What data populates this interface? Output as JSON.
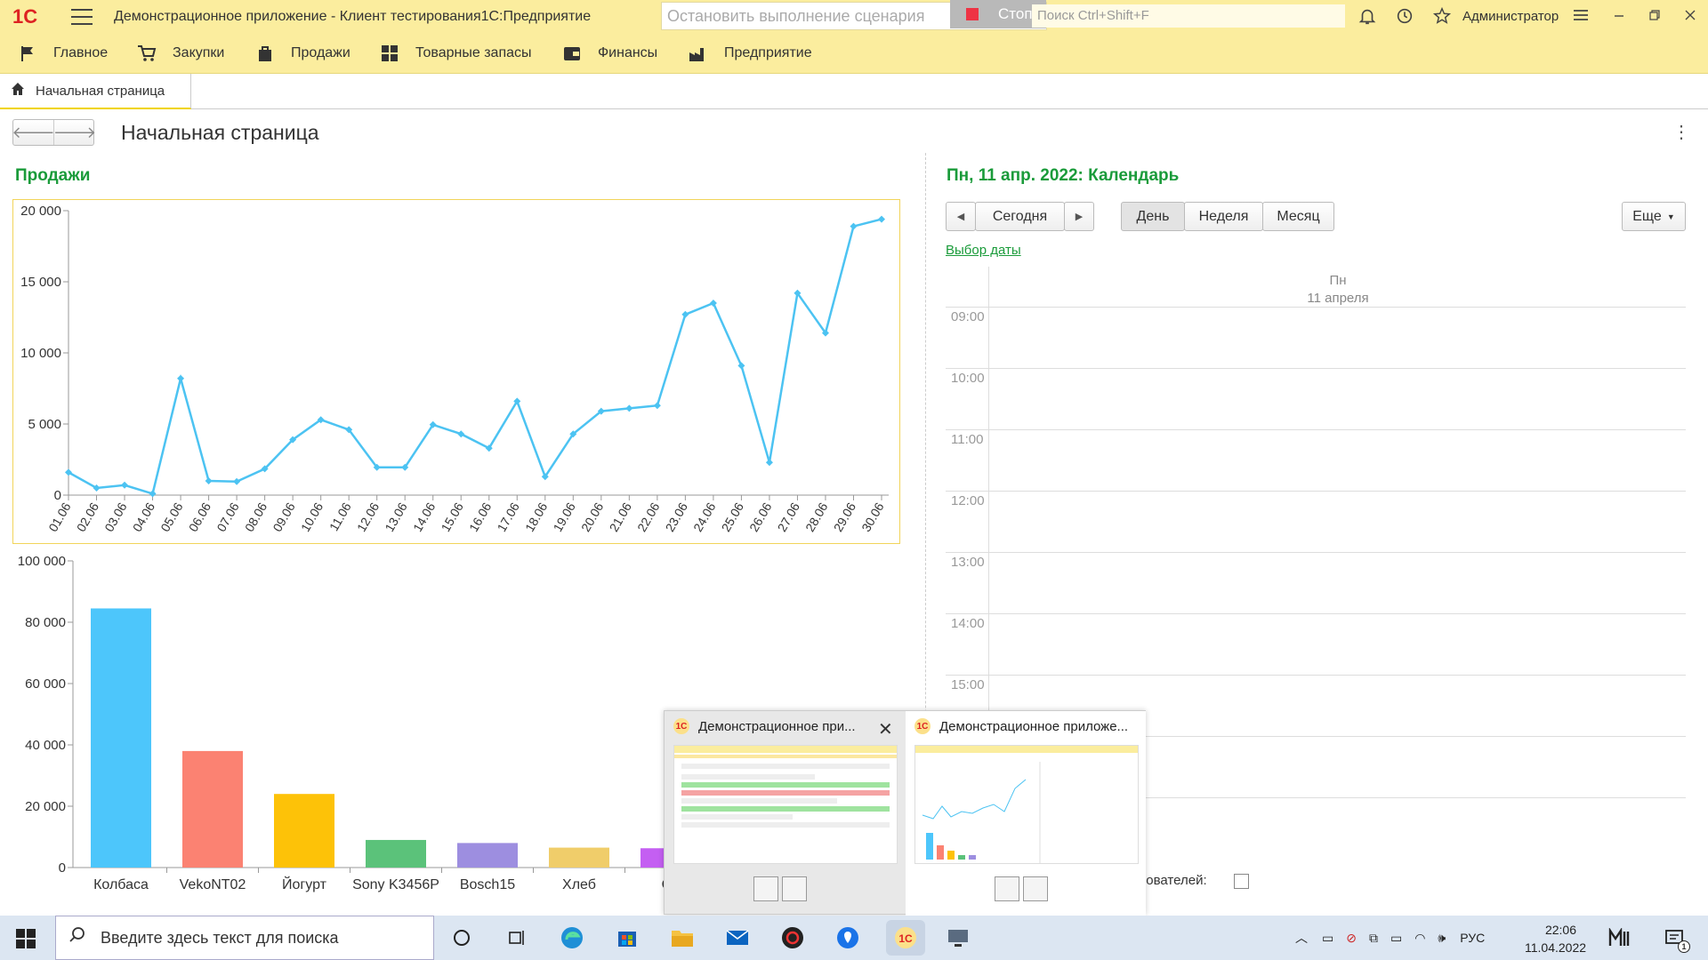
{
  "titlebar": {
    "logo": "1С",
    "title": "Демонстрационное приложение  - Клиент тестирования1С:Предприятие",
    "stop_scenario": "Остановить выполнение сценария",
    "stop_button": "Стоп",
    "search_placeholder": "Поиск Ctrl+Shift+F",
    "user": "Администратор"
  },
  "sections": [
    {
      "label": "Главное",
      "icon": "flag-icon"
    },
    {
      "label": "Закупки",
      "icon": "cart-icon"
    },
    {
      "label": "Продажи",
      "icon": "bag-icon"
    },
    {
      "label": "Товарные запасы",
      "icon": "grid-icon"
    },
    {
      "label": "Финансы",
      "icon": "wallet-icon"
    },
    {
      "label": "Предприятие",
      "icon": "factory-icon"
    }
  ],
  "tabs": {
    "home": "Начальная страница"
  },
  "page": {
    "title": "Начальная страница"
  },
  "sales": {
    "title": "Продажи"
  },
  "chart_data": [
    {
      "type": "line",
      "x": [
        "01.06",
        "02.06",
        "03.06",
        "04.06",
        "05.06",
        "06.06",
        "07.06",
        "08.06",
        "09.06",
        "10.06",
        "11.06",
        "12.06",
        "13.06",
        "14.06",
        "15.06",
        "16.06",
        "17.06",
        "18.06",
        "19.06",
        "20.06",
        "21.06",
        "22.06",
        "23.06",
        "24.06",
        "25.06",
        "26.06",
        "27.06",
        "28.06",
        "29.06",
        "30.06"
      ],
      "series": [
        {
          "values": [
            1600,
            500,
            700,
            100,
            8200,
            1000,
            950,
            1850,
            3900,
            5300,
            4600,
            1950,
            1950,
            4950,
            4300,
            3300,
            6600,
            1300,
            4300,
            5900,
            6100,
            6300,
            12700,
            13500,
            9100,
            2300,
            14200,
            11400,
            18900,
            19400
          ]
        }
      ],
      "ylim": [
        0,
        20000
      ],
      "yticks": [
        "0",
        "5 000",
        "10 000",
        "15 000",
        "20 000"
      ],
      "color": "#4cc3f2"
    },
    {
      "type": "bar",
      "categories": [
        "Колбаса",
        "VekoNT02",
        "Йогурт",
        "Sony K3456P",
        "Bosch15",
        "Хлеб",
        "Са"
      ],
      "values": [
        84500,
        38000,
        24000,
        9000,
        8000,
        6500,
        6300
      ],
      "colors": [
        "#4dc6fb",
        "#fb8272",
        "#fdc208",
        "#5bc27a",
        "#9d8ee0",
        "#f0cd6a",
        "#c45ff2"
      ],
      "ylim": [
        0,
        100000
      ],
      "yticks": [
        "0",
        "20 000",
        "40 000",
        "60 000",
        "80 000",
        "100 000"
      ]
    }
  ],
  "calendar": {
    "title": "Пн, 11 апр. 2022: Календарь",
    "today": "Сегодня",
    "views": [
      "День",
      "Неделя",
      "Месяц"
    ],
    "more": "Еще",
    "date_pick": "Выбор даты",
    "day_name": "Пн",
    "day_date": "11 апреля",
    "hours": [
      "09:00",
      "10:00",
      "11:00",
      "12:00",
      "13:00",
      "14:00",
      "15:00"
    ],
    "users_label": "льзователей:"
  },
  "preview": {
    "window1": "Демонстрационное при...",
    "window2": "Демонстрационное приложе..."
  },
  "taskbar": {
    "search": "Введите здесь текст для поиска",
    "lang": "РУС",
    "time": "22:06",
    "date": "11.04.2022",
    "notif_count": "1"
  }
}
